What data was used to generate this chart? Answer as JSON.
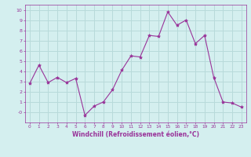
{
  "x": [
    0,
    1,
    2,
    3,
    4,
    5,
    6,
    7,
    8,
    9,
    10,
    11,
    12,
    13,
    14,
    15,
    16,
    17,
    18,
    19,
    20,
    21,
    22,
    23
  ],
  "y": [
    2.8,
    4.6,
    2.9,
    3.4,
    2.9,
    3.3,
    -0.3,
    0.6,
    1.0,
    2.2,
    4.1,
    5.5,
    5.4,
    7.5,
    7.4,
    9.8,
    8.5,
    9.0,
    6.7,
    7.5,
    3.4,
    1.0,
    0.9,
    0.5
  ],
  "line_color": "#993399",
  "marker": "*",
  "marker_size": 3,
  "bg_color": "#d4efef",
  "grid_color": "#b8dada",
  "xlabel": "Windchill (Refroidissement éolien,°C)",
  "xlabel_color": "#993399",
  "tick_color": "#993399",
  "label_color": "#993399",
  "ylim": [
    -1,
    10.5
  ],
  "xlim": [
    -0.5,
    23.5
  ],
  "yticks": [
    0,
    1,
    2,
    3,
    4,
    5,
    6,
    7,
    8,
    9,
    10
  ],
  "ytick_labels": [
    "-0",
    "1",
    "2",
    "3",
    "4",
    "5",
    "6",
    "7",
    "8",
    "9",
    "10"
  ],
  "xticks": [
    0,
    1,
    2,
    3,
    4,
    5,
    6,
    7,
    8,
    9,
    10,
    11,
    12,
    13,
    14,
    15,
    16,
    17,
    18,
    19,
    20,
    21,
    22,
    23
  ]
}
